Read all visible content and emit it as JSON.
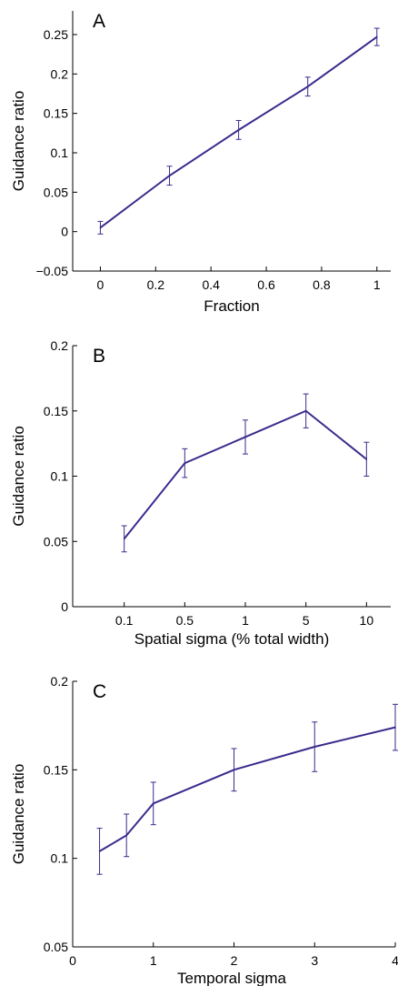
{
  "colors": {
    "series": "#3b2a8c",
    "axis": "#000000"
  },
  "chart_data": [
    {
      "type": "line",
      "title": "",
      "panel_label": "A",
      "xlabel": "Fraction",
      "ylabel": "Guidance ratio",
      "x_scale": "linear",
      "xlim": [
        -0.1,
        1.05
      ],
      "ylim": [
        -0.05,
        0.28
      ],
      "x_ticks": [
        0,
        0.2,
        0.4,
        0.6,
        0.8,
        1
      ],
      "x_tick_labels": [
        "0",
        "0.2",
        "0.4",
        "0.6",
        "0.8",
        "1"
      ],
      "y_ticks": [
        -0.05,
        0,
        0.05,
        0.1,
        0.15,
        0.2,
        0.25
      ],
      "y_tick_labels": [
        "−0.05",
        "0",
        "0.05",
        "0.1",
        "0.15",
        "0.2",
        "0.25"
      ],
      "grid": false,
      "box": "left-bottom",
      "x": [
        0,
        0.25,
        0.5,
        0.75,
        1
      ],
      "y": [
        0.005,
        0.071,
        0.129,
        0.184,
        0.247
      ],
      "err": [
        0.008,
        0.012,
        0.012,
        0.012,
        0.011
      ]
    },
    {
      "type": "line",
      "title": "",
      "panel_label": "B",
      "xlabel": "Spatial sigma (% total width)",
      "ylabel": "Guidance ratio",
      "x_scale": "categorical",
      "xlim": [
        -0.85,
        4.4
      ],
      "ylim": [
        0,
        0.2
      ],
      "x_ticks": [
        0,
        1,
        2,
        3,
        4
      ],
      "x_tick_labels": [
        "0.1",
        "0.5",
        "1",
        "5",
        "10"
      ],
      "y_ticks": [
        0,
        0.05,
        0.1,
        0.15,
        0.2
      ],
      "y_tick_labels": [
        "0",
        "0.05",
        "0.1",
        "0.15",
        "0.2"
      ],
      "grid": false,
      "box": "left-bottom",
      "categories": [
        "0.1",
        "0.5",
        "1",
        "5",
        "10"
      ],
      "x": [
        0,
        1,
        2,
        3,
        4
      ],
      "y": [
        0.052,
        0.11,
        0.13,
        0.15,
        0.113
      ],
      "err": [
        0.01,
        0.011,
        0.013,
        0.013,
        0.013
      ]
    },
    {
      "type": "line",
      "title": "",
      "panel_label": "C",
      "xlabel": "Temporal sigma",
      "ylabel": "Guidance ratio",
      "x_scale": "linear",
      "xlim": [
        0,
        4
      ],
      "ylim": [
        0.05,
        0.2
      ],
      "x_ticks": [
        0,
        1,
        2,
        3,
        4
      ],
      "x_tick_labels": [
        "0",
        "1",
        "2",
        "3",
        "4"
      ],
      "y_ticks": [
        0.05,
        0.1,
        0.15,
        0.2
      ],
      "y_tick_labels": [
        "0.05",
        "0.1",
        "0.15",
        "0.2"
      ],
      "grid": false,
      "box": "left-bottom",
      "x": [
        0.333,
        0.667,
        1,
        2,
        3,
        4
      ],
      "y": [
        0.104,
        0.113,
        0.131,
        0.15,
        0.163,
        0.174
      ],
      "err": [
        0.013,
        0.012,
        0.012,
        0.012,
        0.014,
        0.013
      ]
    }
  ]
}
